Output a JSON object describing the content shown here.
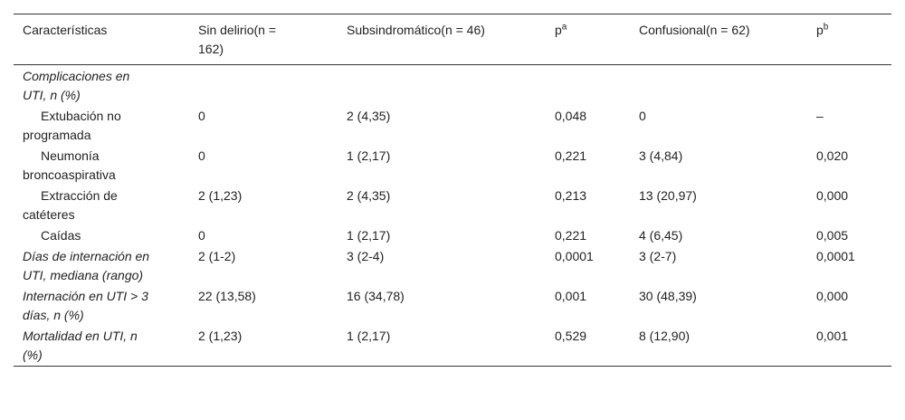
{
  "table": {
    "header": [
      {
        "text": "Características"
      },
      {
        "text": "Sin delirio(n = 162)"
      },
      {
        "text": "Subsindromático(n = 46)"
      },
      {
        "text": "p",
        "sup": "a"
      },
      {
        "text": "Confusional(n = 62)"
      },
      {
        "text": "p",
        "sup": "b"
      }
    ],
    "rows": [
      {
        "label": "Complicaciones en UTI, n (%)",
        "italic": true,
        "indent": false,
        "cells": []
      },
      {
        "label": "Extubación no programada",
        "italic": false,
        "indent": true,
        "cells": [
          "0",
          "2 (4,35)",
          "0,048",
          "0",
          "–"
        ]
      },
      {
        "label": "Neumonía broncoaspirativa",
        "italic": false,
        "indent": true,
        "cells": [
          "0",
          "1 (2,17)",
          "0,221",
          "3 (4,84)",
          "0,020"
        ]
      },
      {
        "label": "Extracción de catéteres",
        "italic": false,
        "indent": true,
        "cells": [
          "2 (1,23)",
          "2 (4,35)",
          "0,213",
          "13 (20,97)",
          "0,000"
        ]
      },
      {
        "label": "Caídas",
        "italic": false,
        "indent": true,
        "cells": [
          "0",
          "1 (2,17)",
          "0,221",
          "4 (6,45)",
          "0,005"
        ]
      },
      {
        "label": "Días de internación en UTI, mediana (rango)",
        "italic": true,
        "indent": false,
        "cells": [
          "2 (1-2)",
          "3 (2-4)",
          "0,0001",
          "3 (2-7)",
          "0,0001"
        ]
      },
      {
        "label": "Internación en UTI > 3 días, n (%)",
        "italic": true,
        "indent": false,
        "cells": [
          "22 (13,58)",
          "16 (34,78)",
          "0,001",
          "30 (48,39)",
          "0,000"
        ]
      },
      {
        "label": "Mortalidad en UTI, n (%)",
        "italic": true,
        "indent": false,
        "cells": [
          "2 (1,23)",
          "1 (2,17)",
          "0,529",
          "8 (12,90)",
          "0,001"
        ]
      }
    ]
  }
}
